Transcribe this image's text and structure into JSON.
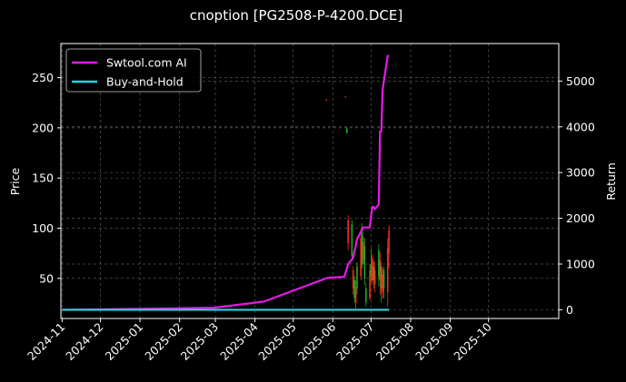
{
  "chart_data": {
    "type": "line",
    "title": "cnoption [PG2508-P-4200.DCE]",
    "ylabel": "Price",
    "y2label": "Return",
    "grid": true,
    "legend_position": "top-left",
    "colors": {
      "background": "#000000",
      "strategy": "#e619e6",
      "buy_hold": "#2ad4e0",
      "up_candle": "#ff2a1a",
      "down_candle": "#1fae1f",
      "grid": "#555555"
    },
    "xlim": [
      "2024-10-31",
      "2025-11-25"
    ],
    "ylim": [
      10,
      284
    ],
    "y2lim": [
      -190,
      5820
    ],
    "x_ticks": [
      "2024-11",
      "2024-12",
      "2025-01",
      "2025-02",
      "2025-03",
      "2025-04",
      "2025-05",
      "2025-06",
      "2025-07",
      "2025-08",
      "2025-09",
      "2025-10"
    ],
    "y_ticks": [
      50,
      100,
      150,
      200,
      250
    ],
    "y2_ticks": [
      0,
      1000,
      2000,
      3000,
      4000,
      5000
    ],
    "series": [
      {
        "name": "Swtool.com AI",
        "axis": "right",
        "x": [
          "2024-11-01",
          "2025-01-01",
          "2025-02-28",
          "2025-04-08",
          "2025-05-28",
          "2025-06-10",
          "2025-06-12",
          "2025-06-13",
          "2025-06-16",
          "2025-06-17",
          "2025-06-19",
          "2025-06-20",
          "2025-06-23",
          "2025-06-24",
          "2025-06-25",
          "2025-06-30",
          "2025-07-01",
          "2025-07-02",
          "2025-07-03",
          "2025-07-04",
          "2025-07-07",
          "2025-07-08",
          "2025-07-09",
          "2025-07-10",
          "2025-07-11",
          "2025-07-14",
          "2025-07-15"
        ],
        "y": [
          0,
          20,
          45,
          180,
          700,
          720,
          900,
          1000,
          1100,
          1150,
          1400,
          1550,
          1700,
          1750,
          1800,
          1800,
          2050,
          2250,
          2250,
          2200,
          2300,
          3900,
          3900,
          4800,
          5000,
          5550,
          5550
        ]
      },
      {
        "name": "Buy-and-Hold",
        "axis": "right",
        "x": [
          "2024-11-01",
          "2025-07-15"
        ],
        "y": [
          0,
          0
        ]
      }
    ],
    "candles": [
      {
        "d": "2025-05-27",
        "o": 228,
        "c": 228,
        "h": 228.6,
        "l": 227.6
      },
      {
        "d": "2025-06-11",
        "o": 231,
        "c": 231,
        "h": 231.6,
        "l": 230.6
      },
      {
        "d": "2025-06-12",
        "o": 199,
        "c": 195,
        "h": 201,
        "l": 194
      },
      {
        "d": "2025-06-13",
        "o": 85,
        "c": 108,
        "h": 113,
        "l": 78
      },
      {
        "d": "2025-06-16",
        "o": 104,
        "c": 72,
        "h": 108,
        "l": 68
      },
      {
        "d": "2025-06-17",
        "o": 40,
        "c": 58,
        "h": 62,
        "l": 34
      },
      {
        "d": "2025-06-18",
        "o": 48,
        "c": 30,
        "h": 52,
        "l": 26
      },
      {
        "d": "2025-06-19",
        "o": 25,
        "c": 42,
        "h": 48,
        "l": 20
      },
      {
        "d": "2025-06-20",
        "o": 62,
        "c": 40,
        "h": 66,
        "l": 34
      },
      {
        "d": "2025-06-23",
        "o": 52,
        "c": 90,
        "h": 100,
        "l": 48
      },
      {
        "d": "2025-06-24",
        "o": 96,
        "c": 64,
        "h": 105,
        "l": 60
      },
      {
        "d": "2025-06-25",
        "o": 70,
        "c": 86,
        "h": 92,
        "l": 64
      },
      {
        "d": "2025-06-26",
        "o": 82,
        "c": 50,
        "h": 90,
        "l": 44
      },
      {
        "d": "2025-06-27",
        "o": 40,
        "c": 26,
        "h": 45,
        "l": 22
      },
      {
        "d": "2025-06-30",
        "o": 30,
        "c": 58,
        "h": 64,
        "l": 28
      },
      {
        "d": "2025-07-01",
        "o": 64,
        "c": 52,
        "h": 80,
        "l": 46
      },
      {
        "d": "2025-07-02",
        "o": 48,
        "c": 70,
        "h": 74,
        "l": 44
      },
      {
        "d": "2025-07-03",
        "o": 62,
        "c": 48,
        "h": 68,
        "l": 40
      },
      {
        "d": "2025-07-04",
        "o": 44,
        "c": 58,
        "h": 66,
        "l": 36
      },
      {
        "d": "2025-07-07",
        "o": 78,
        "c": 52,
        "h": 84,
        "l": 42
      },
      {
        "d": "2025-07-08",
        "o": 48,
        "c": 68,
        "h": 76,
        "l": 34
      },
      {
        "d": "2025-07-09",
        "o": 62,
        "c": 40,
        "h": 66,
        "l": 26
      },
      {
        "d": "2025-07-10",
        "o": 36,
        "c": 54,
        "h": 60,
        "l": 30
      },
      {
        "d": "2025-07-11",
        "o": 58,
        "c": 40,
        "h": 62,
        "l": 30
      },
      {
        "d": "2025-07-14",
        "o": 36,
        "c": 80,
        "h": 90,
        "l": 22
      },
      {
        "d": "2025-07-15",
        "o": 75,
        "c": 98,
        "h": 103,
        "l": 60
      }
    ]
  }
}
